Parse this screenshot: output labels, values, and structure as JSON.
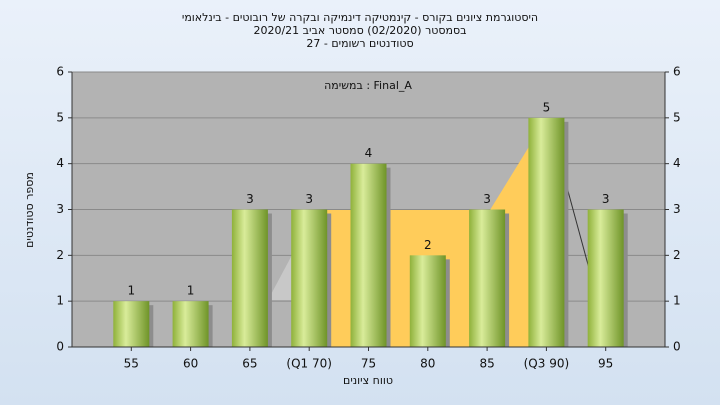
{
  "chart_data": {
    "type": "bar",
    "title": "היסטוגרמת ציונים בקורס - קינמטיקה דינמיקה ובקרה של רובוטים - בינלאומי",
    "subtitle": "בסמסטר  (02/2020)  סמסטר אביב 2020/21",
    "subtitle2": "סטודנטים רשומים - 27",
    "annotation": "Final_A : במשימה",
    "x_label": "טווח ציונים",
    "y_label": "מספר סטודנטים",
    "categories": [
      "55",
      "60",
      "65",
      "(Q1 70)",
      "75",
      "80",
      "85",
      "(Q3 90)",
      "95"
    ],
    "values": [
      1,
      1,
      3,
      3,
      4,
      2,
      3,
      5,
      3
    ],
    "ylim": [
      0,
      6
    ],
    "yticks": [
      0,
      1,
      2,
      3,
      4,
      5,
      6
    ],
    "y2lim": [
      0,
      6
    ],
    "y2ticks": [
      0,
      1,
      2,
      3,
      4,
      5,
      6
    ],
    "grid": true
  }
}
